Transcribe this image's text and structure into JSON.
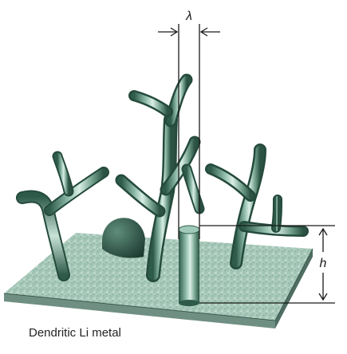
{
  "labels": {
    "lambda": "λ",
    "height": "h",
    "caption": "Dendritic Li metal"
  },
  "colors": {
    "dendrite_light": "#cfe7dc",
    "dendrite_mid": "#6f9d8a",
    "dendrite_dark": "#2e5a4a",
    "substrate_top": "#a9c9bb",
    "substrate_edge": "#5c7f72",
    "annotation": "#1a1a1a"
  }
}
